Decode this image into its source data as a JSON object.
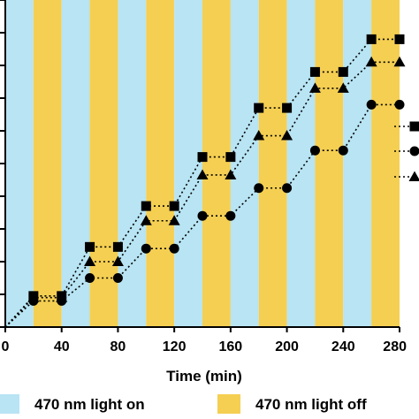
{
  "chart_data": {
    "type": "line",
    "xlabel": "Time (min)",
    "ylabel": "",
    "xlim": [
      0,
      280
    ],
    "xticks": [
      0,
      40,
      80,
      120,
      160,
      200,
      240,
      280
    ],
    "ylim": [
      0,
      10
    ],
    "yticks": [
      0,
      1,
      2,
      3,
      4,
      5,
      6,
      7,
      8,
      9,
      10
    ],
    "grid": false,
    "background_bands": {
      "period_min": 20,
      "on_color": "#b8e4f3",
      "off_color": "#f5cf52",
      "sequence_start": "on"
    },
    "legend": {
      "placement": "bottom",
      "entries": [
        {
          "label": "470 nm light on",
          "color": "#b8e4f3"
        },
        {
          "label": "470 nm light off",
          "color": "#f5cf52"
        }
      ]
    },
    "series": [
      {
        "marker": "square",
        "x": [
          0,
          20,
          40,
          60,
          80,
          100,
          120,
          140,
          160,
          180,
          200,
          220,
          240,
          260,
          280
        ],
        "y": [
          0,
          0.95,
          0.95,
          2.45,
          2.45,
          3.7,
          3.7,
          5.2,
          5.2,
          6.7,
          6.7,
          7.8,
          7.8,
          8.8,
          8.8
        ]
      },
      {
        "marker": "triangle",
        "x": [
          0,
          20,
          40,
          60,
          80,
          100,
          120,
          140,
          160,
          180,
          200,
          220,
          240,
          260,
          280
        ],
        "y": [
          0,
          0.9,
          0.9,
          2.0,
          2.0,
          3.25,
          3.25,
          4.65,
          4.65,
          5.85,
          5.85,
          7.3,
          7.3,
          8.1,
          8.1
        ]
      },
      {
        "marker": "circle",
        "x": [
          0,
          20,
          40,
          60,
          80,
          100,
          120,
          140,
          160,
          180,
          200,
          220,
          240,
          260,
          280
        ],
        "y": [
          0,
          0.8,
          0.8,
          1.5,
          1.5,
          2.4,
          2.4,
          3.4,
          3.4,
          4.25,
          4.25,
          5.4,
          5.4,
          6.8,
          6.8
        ]
      }
    ],
    "right_legend_markers": [
      "square",
      "circle",
      "triangle"
    ]
  }
}
